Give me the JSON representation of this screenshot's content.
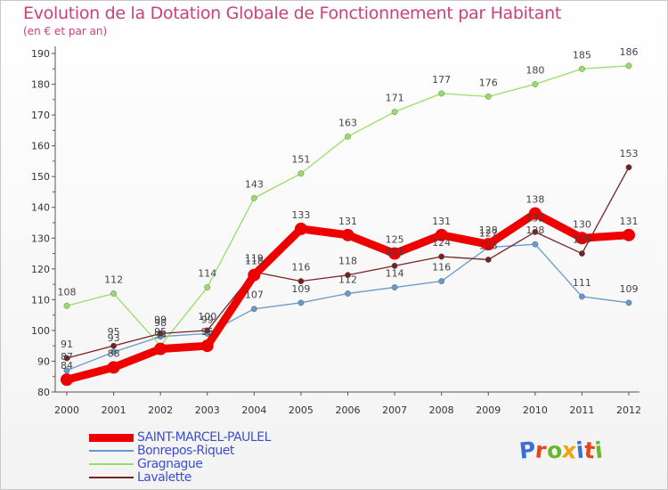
{
  "title": "Evolution de la Dotation Globale de Fonctionnement par Habitant",
  "subtitle": "(en € et par an)",
  "logo": {
    "text": "Proxiti",
    "letter_colors": [
      "#3a6fd8",
      "#e8431c",
      "#6ab82e",
      "#f2a311",
      "#3a6fd8",
      "#e8431c",
      "#6ab82e"
    ]
  },
  "chart_data": {
    "type": "line",
    "title": "Evolution de la Dotation Globale de Fonctionnement par Habitant",
    "subtitle": "(en € et par an)",
    "x": [
      "2000",
      "2001",
      "2002",
      "2003",
      "2004",
      "2005",
      "2006",
      "2007",
      "2008",
      "2009",
      "2010",
      "2011",
      "2012"
    ],
    "ylim": [
      80,
      190
    ],
    "yticks": [
      80,
      90,
      100,
      110,
      120,
      130,
      140,
      150,
      160,
      170,
      180,
      190
    ],
    "grid": false,
    "legend_position": "bottom-left",
    "series": [
      {
        "name": "SAINT-MARCEL-PAULEL",
        "color": "#ee0000",
        "emphasis": true,
        "values": [
          84,
          88,
          94,
          95,
          118,
          133,
          131,
          125,
          131,
          128,
          138,
          130,
          131
        ]
      },
      {
        "name": "Bonrepos-Riquet",
        "color": "#6699cc",
        "emphasis": false,
        "values": [
          87,
          93,
          98,
          99,
          107,
          109,
          112,
          114,
          116,
          127,
          128,
          111,
          109
        ]
      },
      {
        "name": "Gragnague",
        "color": "#99dd66",
        "emphasis": false,
        "values": [
          108,
          112,
          95,
          114,
          143,
          151,
          163,
          171,
          177,
          176,
          180,
          185,
          186
        ]
      },
      {
        "name": "Lavalette",
        "color": "#772222",
        "emphasis": false,
        "values": [
          91,
          95,
          99,
          100,
          119,
          116,
          118,
          121,
          124,
          123,
          132,
          125,
          153
        ]
      }
    ]
  }
}
